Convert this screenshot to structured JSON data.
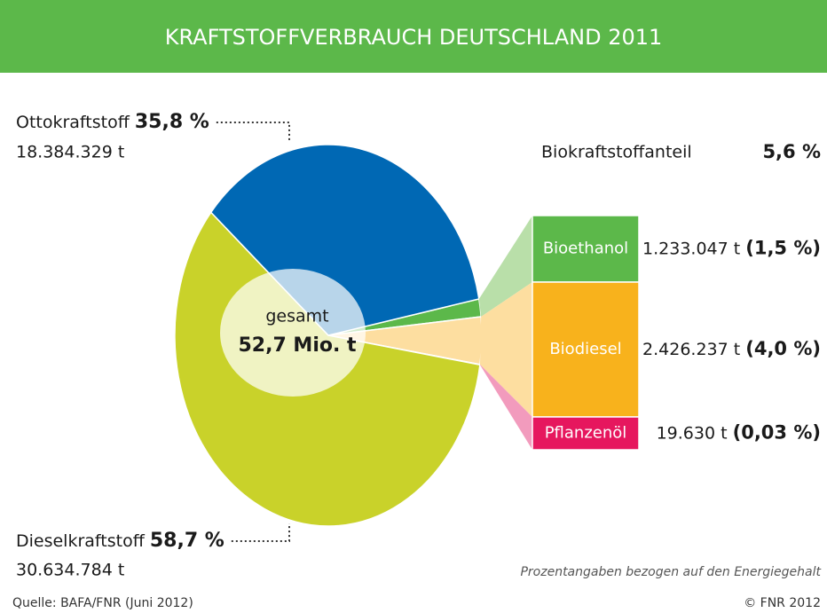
{
  "chart_data": {
    "type": "pie",
    "title": "KRAFTSTOFFVERBRAUCH DEUTSCHLAND 2011",
    "categories": [
      "Bioethanol",
      "Biodiesel",
      "Pflanzenöl",
      "Dieselkraftstoff",
      "Ottokraftstoff"
    ],
    "values": [
      1.5,
      4.0,
      0.03,
      58.7,
      35.8
    ],
    "value_labels": [
      "(1,5 %)",
      "(4,0 %)",
      "(0,03 %)",
      "58,7 %",
      "35,8 %"
    ],
    "amount_labels": [
      "1.233.047 t",
      "2.426.237 t",
      "19.630 t",
      "30.634.784 t",
      "18.384.329 t"
    ],
    "colors": [
      "#5cb84a",
      "#f8b21c",
      "#e6175e",
      "#c9d22a",
      "#0068b4"
    ],
    "total_label": "gesamt",
    "total": "52,7 Mio. t",
    "bio_share_label": "Biokraftstoffanteil",
    "bio_share": "5,6 %",
    "note": "Prozentangaben bezogen auf den Energiegehalt",
    "source": "Quelle: BAFA/FNR (Juni 2012)",
    "copyright": "© FNR 2012"
  }
}
